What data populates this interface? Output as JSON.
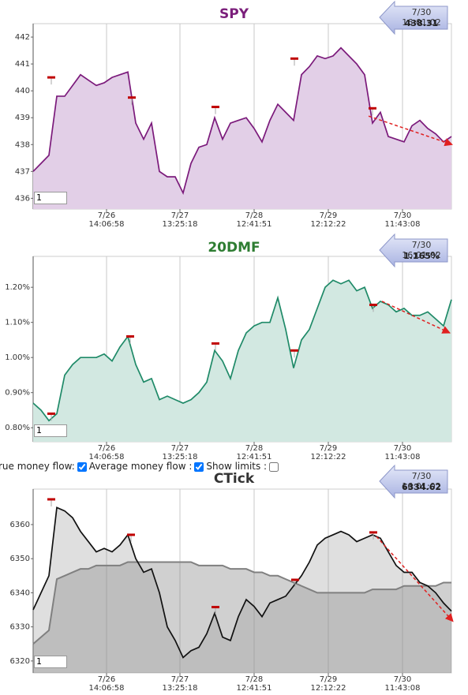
{
  "chart_data": [
    {
      "type": "line",
      "title": "SPY",
      "title_color": "#7b1f7b",
      "x": [
        0,
        1,
        2,
        3,
        4,
        5,
        6,
        7,
        8,
        9,
        10,
        11,
        12,
        13,
        14,
        15,
        16,
        17,
        18,
        19,
        20,
        21,
        22,
        23,
        24,
        25,
        26,
        27,
        28,
        29,
        30,
        31,
        32,
        33,
        34,
        35,
        36,
        37,
        38,
        39,
        40,
        41,
        42,
        43,
        44,
        45,
        46,
        47,
        48,
        49,
        50,
        51,
        52,
        53
      ],
      "xlim": [
        0,
        53
      ],
      "xticks": [
        {
          "value": 9.3,
          "label": "7/26\n14:06:58"
        },
        {
          "value": 18.6,
          "label": "7/27\n13:25:18"
        },
        {
          "value": 28,
          "label": "7/28\n12:41:51"
        },
        {
          "value": 37.4,
          "label": "7/29\n12:12:22"
        },
        {
          "value": 46.8,
          "label": "7/30\n11:43:08"
        }
      ],
      "ylim": [
        435.6,
        442.5
      ],
      "yticks": [
        436,
        437,
        438,
        439,
        440,
        441,
        442
      ],
      "grid": "x",
      "series": [
        {
          "name": "SPY",
          "color": "#7b1a7b",
          "fill": "#e2cfe7",
          "values": [
            437.0,
            437.3,
            437.6,
            439.8,
            439.8,
            440.2,
            440.6,
            440.4,
            440.2,
            440.3,
            440.5,
            440.6,
            440.7,
            438.8,
            438.2,
            438.8,
            437.0,
            436.8,
            436.8,
            436.2,
            437.3,
            437.9,
            438.0,
            439.0,
            438.2,
            438.8,
            438.9,
            439.0,
            438.6,
            438.1,
            438.9,
            439.5,
            439.2,
            438.9,
            440.6,
            440.9,
            441.3,
            441.2,
            441.3,
            441.6,
            441.3,
            441.0,
            440.6,
            438.8,
            439.2,
            438.3,
            438.2,
            438.1,
            438.7,
            438.9,
            438.6,
            438.4,
            438.1,
            438.3
          ]
        }
      ],
      "markers": {
        "x": [
          2.3,
          12.5,
          23.1,
          33.1,
          43
        ],
        "y": [
          440.5,
          439.75,
          439.4,
          441.2,
          439.35
        ]
      },
      "trend": {
        "x": [
          42.5,
          53.1
        ],
        "y": [
          439.06,
          438.0
        ]
      },
      "callout": {
        "time": "7/30 16:01:02",
        "value": "438.31"
      },
      "input": "1"
    },
    {
      "type": "line",
      "title": "20DMF",
      "title_color": "#2e7d32",
      "x": [
        0,
        1,
        2,
        3,
        4,
        5,
        6,
        7,
        8,
        9,
        10,
        11,
        12,
        13,
        14,
        15,
        16,
        17,
        18,
        19,
        20,
        21,
        22,
        23,
        24,
        25,
        26,
        27,
        28,
        29,
        30,
        31,
        32,
        33,
        34,
        35,
        36,
        37,
        38,
        39,
        40,
        41,
        42,
        43,
        44,
        45,
        46,
        47,
        48,
        49,
        50,
        51,
        52,
        53
      ],
      "xlim": [
        0,
        53
      ],
      "xticks": [
        {
          "value": 9.3,
          "label": "7/26\n14:06:58"
        },
        {
          "value": 18.6,
          "label": "7/27\n13:25:18"
        },
        {
          "value": 28,
          "label": "7/28\n12:41:51"
        },
        {
          "value": 37.4,
          "label": "7/29\n12:12:22"
        },
        {
          "value": 46.8,
          "label": "7/30\n11:43:08"
        }
      ],
      "ylim": [
        0.76,
        1.288
      ],
      "yticks": [
        {
          "value": 0.8,
          "label": "0.80%"
        },
        {
          "value": 0.9,
          "label": "0.90%"
        },
        {
          "value": 1.0,
          "label": "1.00%"
        },
        {
          "value": 1.1,
          "label": "1.10%"
        },
        {
          "value": 1.2,
          "label": "1.20%"
        }
      ],
      "grid": "x",
      "series": [
        {
          "name": "20DMF",
          "color": "#1f8a68",
          "fill": "#d2e8e1",
          "values": [
            0.87,
            0.85,
            0.82,
            0.84,
            0.95,
            0.98,
            1.0,
            1.0,
            1.0,
            1.01,
            0.99,
            1.03,
            1.06,
            0.98,
            0.93,
            0.94,
            0.88,
            0.89,
            0.88,
            0.87,
            0.88,
            0.9,
            0.93,
            1.02,
            0.99,
            0.94,
            1.02,
            1.07,
            1.09,
            1.1,
            1.1,
            1.17,
            1.08,
            0.97,
            1.05,
            1.08,
            1.14,
            1.2,
            1.22,
            1.21,
            1.22,
            1.19,
            1.2,
            1.14,
            1.16,
            1.15,
            1.13,
            1.14,
            1.12,
            1.12,
            1.13,
            1.11,
            1.09,
            1.165
          ]
        }
      ],
      "markers": {
        "x": [
          2.3,
          12.3,
          23.1,
          33.1,
          43.1
        ],
        "y": [
          0.84,
          1.06,
          1.04,
          1.02,
          1.15
        ]
      },
      "trend": {
        "x": [
          44.2,
          52.8
        ],
        "y": [
          1.16,
          1.07
        ]
      },
      "callout": {
        "time": "7/30 16:01:02",
        "value": "1.165%"
      },
      "input": "1"
    },
    {
      "type": "line",
      "title": "CTick",
      "title_color": "#333333",
      "x": [
        0,
        1,
        2,
        3,
        4,
        5,
        6,
        7,
        8,
        9,
        10,
        11,
        12,
        13,
        14,
        15,
        16,
        17,
        18,
        19,
        20,
        21,
        22,
        23,
        24,
        25,
        26,
        27,
        28,
        29,
        30,
        31,
        32,
        33,
        34,
        35,
        36,
        37,
        38,
        39,
        40,
        41,
        42,
        43,
        44,
        45,
        46,
        47,
        48,
        49,
        50,
        51,
        52,
        53
      ],
      "xlim": [
        0,
        53
      ],
      "xticks": [
        {
          "value": 9.3,
          "label": "7/26\n14:06:58"
        },
        {
          "value": 18.6,
          "label": "7/27\n13:25:18"
        },
        {
          "value": 28,
          "label": "7/28\n12:41:51"
        },
        {
          "value": 37.4,
          "label": "7/29\n12:12:22"
        },
        {
          "value": 46.8,
          "label": "7/30\n11:43:08"
        }
      ],
      "ylim": [
        6316.5,
        6370.4
      ],
      "yticks": [
        6320,
        6330,
        6340,
        6350,
        6360
      ],
      "grid": "x",
      "series": [
        {
          "name": "Average money flow",
          "color": "#808080",
          "fill": "rgba(120,120,120,0.35)",
          "values": [
            6325,
            6327,
            6329,
            6344,
            6345,
            6346,
            6347,
            6347,
            6348,
            6348,
            6348,
            6348,
            6349,
            6349,
            6349,
            6349,
            6349,
            6349,
            6349,
            6349,
            6349,
            6348,
            6348,
            6348,
            6348,
            6347,
            6347,
            6347,
            6346,
            6346,
            6345,
            6345,
            6344,
            6343,
            6342,
            6341,
            6340,
            6340,
            6340,
            6340,
            6340,
            6340,
            6340,
            6341,
            6341,
            6341,
            6341,
            6342,
            6342,
            6342,
            6342,
            6342,
            6343,
            6343
          ]
        },
        {
          "name": "CTick",
          "color": "#111111",
          "fill": "rgba(150,150,150,0.3)",
          "values": [
            6335,
            6340,
            6345,
            6365,
            6364,
            6362,
            6358,
            6355,
            6352,
            6353,
            6352,
            6354,
            6357,
            6350,
            6346,
            6347,
            6340,
            6330,
            6326,
            6321,
            6323,
            6324,
            6328,
            6334,
            6327,
            6326,
            6333,
            6338,
            6336,
            6333,
            6337,
            6338,
            6339,
            6342,
            6345,
            6349,
            6354,
            6356,
            6357,
            6358,
            6357,
            6355,
            6356,
            6357,
            6356,
            6352,
            6348,
            6346,
            6346,
            6343,
            6342,
            6340,
            6337,
            6334.62
          ]
        }
      ],
      "markers": {
        "x": [
          2.3,
          12.4,
          23.1,
          33.2,
          43.1
        ],
        "y": [
          6367.4,
          6357,
          6335.8,
          6343.8,
          6357.7
        ]
      },
      "trend": {
        "x": [
          43.5,
          53.2
        ],
        "y": [
          6356.5,
          6331.6
        ]
      },
      "callout": {
        "time": "7/30 16:01:02",
        "value": "6334.62"
      },
      "input": "1"
    }
  ],
  "controls": [
    {
      "label": "rue money flow:",
      "checked": true
    },
    {
      "label": "Average money flow :",
      "checked": true
    },
    {
      "label": "Show limits :",
      "checked": false
    }
  ]
}
